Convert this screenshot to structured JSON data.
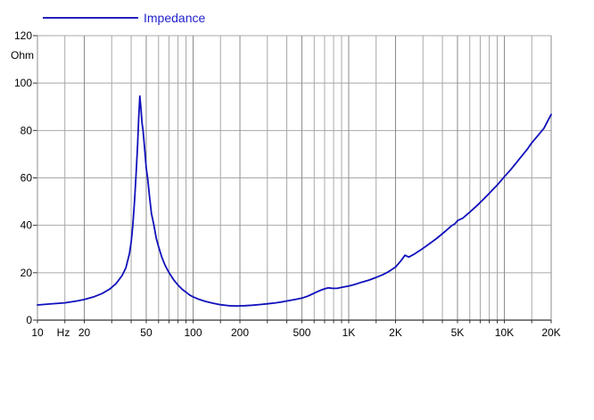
{
  "legend": {
    "label": "Impedance"
  },
  "colors": {
    "curve": "#1010bb",
    "legend_line": "#2222bb",
    "legend_text": "#2222cc",
    "grid_major": "#8c8c8c",
    "grid_minor": "#a8a8a8",
    "axis": "#333333",
    "text": "#000000",
    "background": "#ffffff"
  },
  "chart_data": {
    "type": "line",
    "title": "",
    "x_scale": "log",
    "x_range": [
      10,
      20000
    ],
    "y_range": [
      0,
      120
    ],
    "x_unit": "Hz",
    "y_unit": "Ohm",
    "grid": true,
    "legend_position": "top-left",
    "y_ticks": [
      0,
      20,
      40,
      60,
      80,
      100,
      120
    ],
    "x_tick_labels": [
      {
        "value": 10,
        "label": "10"
      },
      {
        "value": 20,
        "label": "20"
      },
      {
        "value": 50,
        "label": "50"
      },
      {
        "value": 100,
        "label": "100"
      },
      {
        "value": 200,
        "label": "200"
      },
      {
        "value": 500,
        "label": "500"
      },
      {
        "value": 1000,
        "label": "1K"
      },
      {
        "value": 2000,
        "label": "2K"
      },
      {
        "value": 5000,
        "label": "5K"
      },
      {
        "value": 10000,
        "label": "10K"
      },
      {
        "value": 20000,
        "label": "20K"
      }
    ],
    "grid_multiples": [
      1,
      1.5,
      2,
      3,
      4,
      5,
      6,
      7,
      8,
      9
    ],
    "series": [
      {
        "name": "Impedance",
        "color": "#1010bb",
        "points": [
          [
            10,
            6.4
          ],
          [
            12,
            6.8
          ],
          [
            15,
            7.3
          ],
          [
            18,
            8.1
          ],
          [
            20,
            8.7
          ],
          [
            23,
            9.8
          ],
          [
            26,
            11.2
          ],
          [
            29,
            13.0
          ],
          [
            32,
            15.4
          ],
          [
            35,
            18.8
          ],
          [
            37,
            22
          ],
          [
            39,
            28
          ],
          [
            40,
            33
          ],
          [
            41,
            40
          ],
          [
            42,
            50
          ],
          [
            43,
            61
          ],
          [
            44,
            74
          ],
          [
            44.8,
            86
          ],
          [
            45.5,
            94.5
          ],
          [
            46.3,
            89
          ],
          [
            47,
            83
          ],
          [
            47.7,
            80
          ],
          [
            48.6,
            74
          ],
          [
            50,
            64
          ],
          [
            51,
            60
          ],
          [
            52.5,
            52
          ],
          [
            54,
            45
          ],
          [
            56,
            40
          ],
          [
            58,
            34.5
          ],
          [
            60,
            31
          ],
          [
            63,
            26.5
          ],
          [
            66,
            23.2
          ],
          [
            70,
            20
          ],
          [
            75,
            17
          ],
          [
            80,
            14.8
          ],
          [
            85,
            13
          ],
          [
            90,
            11.8
          ],
          [
            95,
            10.6
          ],
          [
            100,
            9.8
          ],
          [
            110,
            8.7
          ],
          [
            120,
            7.9
          ],
          [
            135,
            7.1
          ],
          [
            150,
            6.5
          ],
          [
            170,
            6.1
          ],
          [
            190,
            6.0
          ],
          [
            215,
            6.1
          ],
          [
            240,
            6.3
          ],
          [
            270,
            6.6
          ],
          [
            300,
            6.9
          ],
          [
            340,
            7.3
          ],
          [
            380,
            7.8
          ],
          [
            420,
            8.3
          ],
          [
            460,
            8.8
          ],
          [
            500,
            9.3
          ],
          [
            540,
            10.0
          ],
          [
            580,
            10.9
          ],
          [
            620,
            11.8
          ],
          [
            660,
            12.6
          ],
          [
            700,
            13.2
          ],
          [
            740,
            13.6
          ],
          [
            790,
            13.4
          ],
          [
            840,
            13.4
          ],
          [
            900,
            13.8
          ],
          [
            1000,
            14.4
          ],
          [
            1100,
            15.1
          ],
          [
            1200,
            15.9
          ],
          [
            1350,
            16.9
          ],
          [
            1500,
            18.0
          ],
          [
            1650,
            19.1
          ],
          [
            1800,
            20.4
          ],
          [
            2000,
            22.4
          ],
          [
            2150,
            24.8
          ],
          [
            2300,
            27.4
          ],
          [
            2430,
            26.6
          ],
          [
            2600,
            27.6
          ],
          [
            2900,
            29.6
          ],
          [
            3300,
            32.2
          ],
          [
            3700,
            34.6
          ],
          [
            4200,
            37.6
          ],
          [
            4600,
            39.9
          ],
          [
            4800,
            40.6
          ],
          [
            5000,
            41.9
          ],
          [
            5150,
            42.4
          ],
          [
            5400,
            43.0
          ],
          [
            6000,
            45.6
          ],
          [
            6700,
            48.4
          ],
          [
            7500,
            51.6
          ],
          [
            8000,
            53.5
          ],
          [
            9000,
            57.0
          ],
          [
            10000,
            60.5
          ],
          [
            11000,
            63.5
          ],
          [
            12500,
            68.0
          ],
          [
            14000,
            72.0
          ],
          [
            15000,
            74.8
          ],
          [
            16500,
            78.0
          ],
          [
            18000,
            81.0
          ],
          [
            19000,
            84.0
          ],
          [
            20000,
            86.8
          ]
        ]
      }
    ]
  }
}
